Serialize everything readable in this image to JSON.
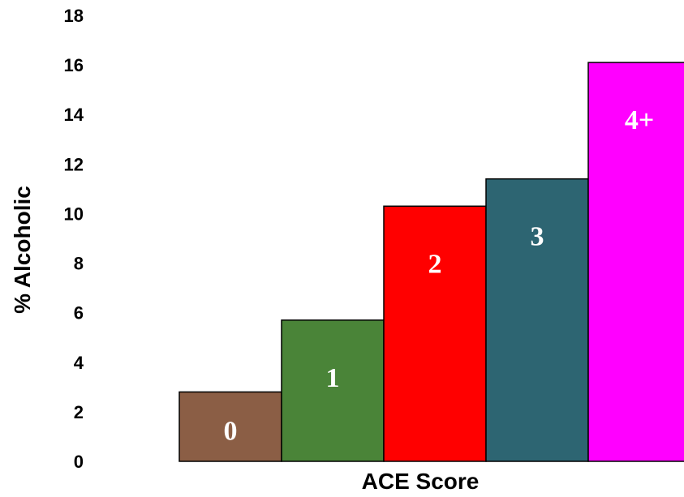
{
  "chart_data": {
    "type": "bar",
    "title": "",
    "xlabel": "ACE Score",
    "ylabel": "% Alcoholic",
    "ylim": [
      0,
      18
    ],
    "yticks": [
      "0",
      "2",
      "4",
      "6",
      "8",
      "10",
      "12",
      "14",
      "16",
      "18"
    ],
    "grid": false,
    "legend": "none",
    "categories": [
      "0",
      "1",
      "2",
      "3",
      "4+"
    ],
    "values": [
      2.8,
      5.7,
      10.3,
      11.4,
      16.1
    ],
    "colors": [
      "#8b5e45",
      "#4a8438",
      "#ff0000",
      "#2d6572",
      "#ff00ff"
    ]
  }
}
